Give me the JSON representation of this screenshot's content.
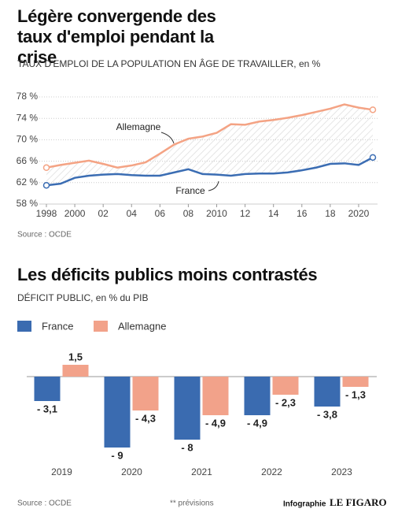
{
  "chart_data": [
    {
      "type": "line",
      "title": "Légère convergende des taux d'emploi pendant la crise",
      "subtitle": "TAUX D'EMPLOI DE LA POPULATION EN ÂGE DE TRAVAILLER, en %",
      "source": "Source : OCDE",
      "x": [
        1998,
        1999,
        2000,
        2001,
        2002,
        2003,
        2004,
        2005,
        2006,
        2007,
        2008,
        2009,
        2010,
        2011,
        2012,
        2013,
        2014,
        2015,
        2016,
        2017,
        2018,
        2019,
        2020,
        2021
      ],
      "series": [
        {
          "name": "France",
          "color": "#3b6db3",
          "values": [
            61.5,
            61.8,
            62.9,
            63.3,
            63.5,
            63.6,
            63.4,
            63.3,
            63.3,
            63.9,
            64.5,
            63.6,
            63.5,
            63.3,
            63.6,
            63.7,
            63.7,
            63.9,
            64.3,
            64.8,
            65.5,
            65.6,
            65.3,
            66.7
          ]
        },
        {
          "name": "Allemagne",
          "color": "#f4a384",
          "values": [
            64.8,
            65.3,
            65.7,
            66.1,
            65.5,
            64.8,
            65.2,
            65.8,
            67.4,
            69.1,
            70.2,
            70.6,
            71.3,
            72.9,
            72.8,
            73.4,
            73.7,
            74.1,
            74.6,
            75.2,
            75.8,
            76.6,
            76.0,
            75.6
          ]
        }
      ],
      "xlim": [
        1998,
        2021
      ],
      "xticks": [
        1998,
        2000,
        {
          "value": 2002,
          "label": "02"
        },
        {
          "value": 2004,
          "label": "04"
        },
        {
          "value": 2006,
          "label": "06"
        },
        {
          "value": 2008,
          "label": "08"
        },
        2010,
        {
          "value": 2012,
          "label": "12"
        },
        {
          "value": 2014,
          "label": "14"
        },
        {
          "value": 2016,
          "label": "16"
        },
        {
          "value": 2018,
          "label": "18"
        },
        2020
      ],
      "ylim": [
        58,
        78
      ],
      "yticks": [
        {
          "value": 58,
          "label": "58 %"
        },
        {
          "value": 62,
          "label": "62 %"
        },
        {
          "value": 66,
          "label": "66 %"
        },
        {
          "value": 70,
          "label": "70 %"
        },
        {
          "value": 74,
          "label": "74 %"
        },
        {
          "value": 78,
          "label": "78 %"
        }
      ],
      "grid": true
    },
    {
      "type": "bar",
      "title": "Les déficits publics moins contrastés",
      "subtitle": "DÉFICIT PUBLIC, en % du PIB",
      "source": "Source : OCDE",
      "note": "** prévisions",
      "categories": [
        "2019",
        "2020",
        "2021",
        "2022",
        "2023"
      ],
      "series": [
        {
          "name": "France",
          "color": "#3a6bb0",
          "values": [
            -3.1,
            -9,
            -8,
            -4.9,
            -3.8
          ],
          "value_labels": [
            "- 3,1",
            "- 9",
            "- 8",
            "- 4,9",
            "- 3,8"
          ]
        },
        {
          "name": "Allemagne",
          "color": "#f2a28a",
          "values": [
            1.5,
            -4.3,
            -4.9,
            -2.3,
            -1.3
          ],
          "value_labels": [
            "1,5",
            "- 4,3",
            "- 4,9",
            "- 2,3",
            "- 1,3"
          ]
        }
      ],
      "ylim": [
        -10,
        2
      ],
      "legend": "top-left"
    }
  ],
  "credit": {
    "prefix": "Infographie",
    "brand": "LE FIGARO"
  }
}
